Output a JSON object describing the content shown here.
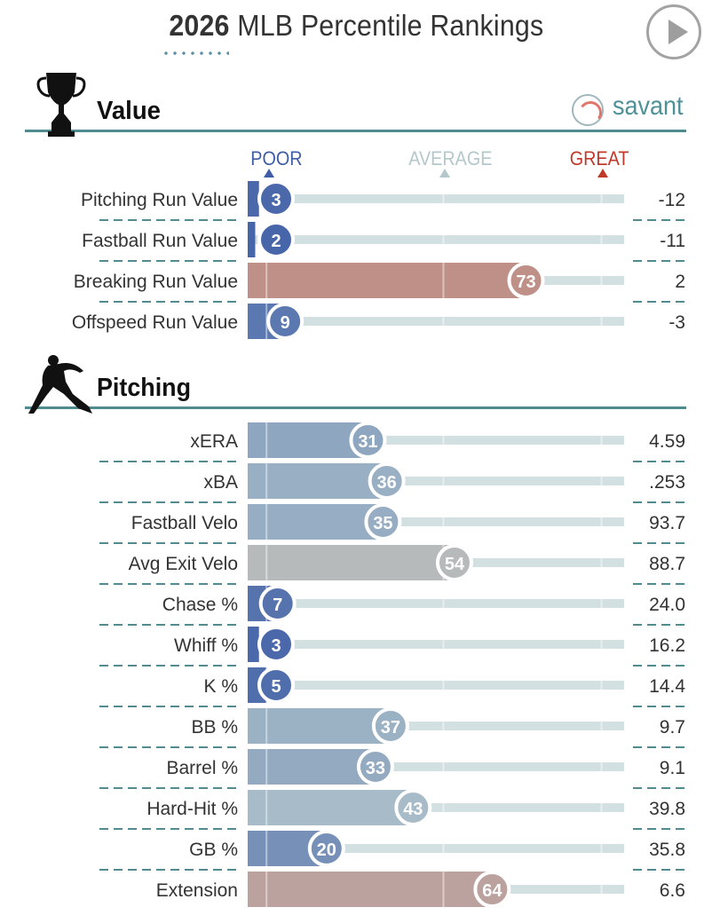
{
  "header": {
    "year": "2026",
    "title_rest": "MLB Percentile Rankings"
  },
  "brand": {
    "name": "savant"
  },
  "icons": {
    "play": "play-icon",
    "trophy": "trophy-icon",
    "pitcher": "pitcher-silhouette-icon",
    "baseball": "baseball-icon"
  },
  "colors": {
    "poor": "#3e5da6",
    "average": "#b4c8cc",
    "great": "#c0392b",
    "accent": "#4f8b8f"
  },
  "scale": {
    "poor": "POOR",
    "average": "AVERAGE",
    "great": "GREAT"
  },
  "chart_data": {
    "type": "bar",
    "orientation": "horizontal",
    "xlim": [
      0,
      100
    ],
    "sections": [
      {
        "title": "Value",
        "categories": [
          "Pitching Run Value",
          "Fastball Run Value",
          "Breaking Run Value",
          "Offspeed Run Value"
        ],
        "percentiles": [
          3,
          2,
          73,
          9
        ],
        "values": [
          "-12",
          "-11",
          "2",
          "-3"
        ]
      },
      {
        "title": "Pitching",
        "categories": [
          "xERA",
          "xBA",
          "Fastball Velo",
          "Avg Exit Velo",
          "Chase %",
          "Whiff %",
          "K %",
          "BB %",
          "Barrel %",
          "Hard-Hit %",
          "GB %",
          "Extension"
        ],
        "percentiles": [
          31,
          36,
          35,
          54,
          7,
          3,
          5,
          37,
          33,
          43,
          20,
          64
        ],
        "values": [
          "4.59",
          ".253",
          "93.7",
          "88.7",
          "24.0",
          "16.2",
          "14.4",
          "9.7",
          "9.1",
          "39.8",
          "35.8",
          "6.6"
        ]
      }
    ]
  }
}
